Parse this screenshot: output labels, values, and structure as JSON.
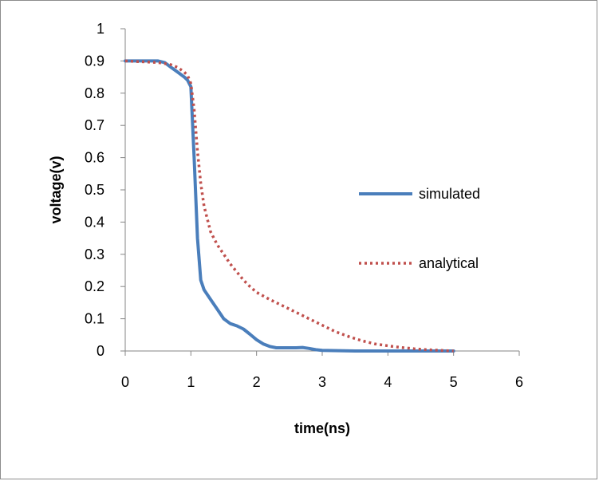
{
  "chart_data": {
    "type": "line",
    "title": "",
    "xlabel": "time(ns)",
    "ylabel": "voltage(v)",
    "xlim": [
      0,
      6
    ],
    "ylim": [
      0,
      1
    ],
    "x_ticks": [
      "0",
      "1",
      "2",
      "3",
      "4",
      "5",
      "6"
    ],
    "y_ticks": [
      "0",
      "0.1",
      "0.2",
      "0.3",
      "0.4",
      "0.5",
      "0.6",
      "0.7",
      "0.8",
      "0.9",
      "1"
    ],
    "grid": false,
    "legend_position": "right",
    "series": [
      {
        "name": "simulated",
        "style": "solid",
        "color": "#4a7ebb",
        "x": [
          0,
          0.5,
          0.6,
          0.7,
          0.8,
          0.9,
          0.95,
          1.0,
          1.05,
          1.1,
          1.15,
          1.2,
          1.3,
          1.4,
          1.5,
          1.6,
          1.7,
          1.8,
          1.9,
          2.0,
          2.1,
          2.2,
          2.3,
          2.4,
          2.5,
          2.6,
          2.7,
          2.8,
          2.9,
          3.0,
          3.5,
          4.0,
          4.5,
          5.0
        ],
        "y": [
          0.9,
          0.9,
          0.895,
          0.88,
          0.865,
          0.85,
          0.84,
          0.82,
          0.6,
          0.35,
          0.22,
          0.19,
          0.16,
          0.13,
          0.1,
          0.085,
          0.078,
          0.068,
          0.052,
          0.035,
          0.022,
          0.014,
          0.01,
          0.01,
          0.01,
          0.01,
          0.011,
          0.008,
          0.004,
          0.002,
          0.0,
          0.0,
          0.0,
          0.0
        ]
      },
      {
        "name": "analytical",
        "style": "dotted",
        "color": "#c0504d",
        "x": [
          0,
          0.5,
          0.6,
          0.7,
          0.8,
          0.9,
          0.95,
          1.0,
          1.05,
          1.1,
          1.15,
          1.2,
          1.3,
          1.4,
          1.5,
          1.6,
          1.7,
          1.8,
          1.9,
          2.0,
          2.2,
          2.4,
          2.6,
          2.8,
          3.0,
          3.2,
          3.4,
          3.6,
          3.8,
          4.0,
          4.2,
          4.4,
          4.6,
          4.8,
          5.0
        ],
        "y": [
          0.9,
          0.895,
          0.892,
          0.888,
          0.88,
          0.865,
          0.855,
          0.83,
          0.75,
          0.62,
          0.52,
          0.45,
          0.37,
          0.33,
          0.3,
          0.27,
          0.245,
          0.22,
          0.2,
          0.182,
          0.16,
          0.14,
          0.12,
          0.1,
          0.08,
          0.06,
          0.045,
          0.032,
          0.022,
          0.016,
          0.011,
          0.007,
          0.004,
          0.002,
          0.0
        ]
      }
    ]
  }
}
